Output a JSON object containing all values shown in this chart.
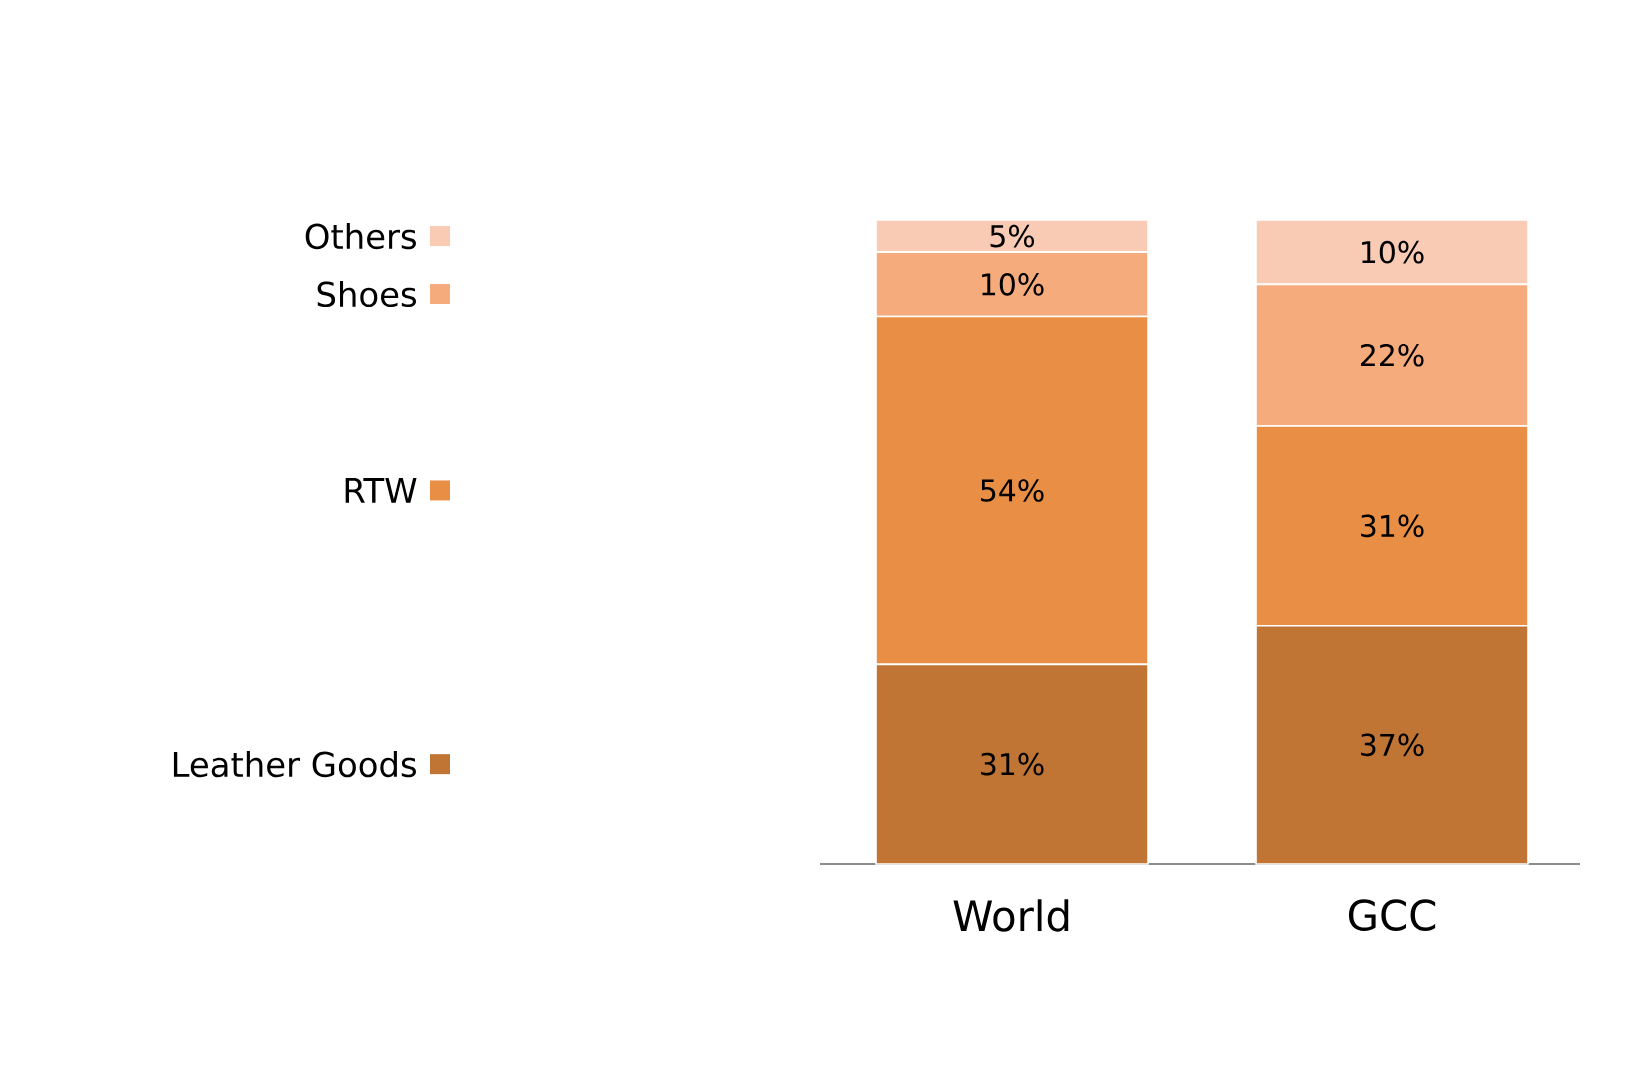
{
  "chart_data": {
    "type": "bar",
    "stacked": true,
    "legend": "left",
    "categories": [
      "World",
      "GCC"
    ],
    "series": [
      {
        "name": "Leather Goods",
        "color": "#c07535",
        "values": [
          31,
          37
        ],
        "value_labels": [
          "31%",
          "37%"
        ]
      },
      {
        "name": "RTW",
        "color": "#e88f45",
        "values": [
          54,
          31
        ],
        "value_labels": [
          "54%",
          "31%"
        ]
      },
      {
        "name": "Shoes",
        "color": "#f6ab7c",
        "values": [
          10,
          22
        ],
        "value_labels": [
          "10%",
          "22%"
        ]
      },
      {
        "name": "Others",
        "color": "#f9cbb4",
        "values": [
          5,
          10
        ],
        "value_labels": [
          "5%",
          "10%"
        ]
      }
    ]
  }
}
